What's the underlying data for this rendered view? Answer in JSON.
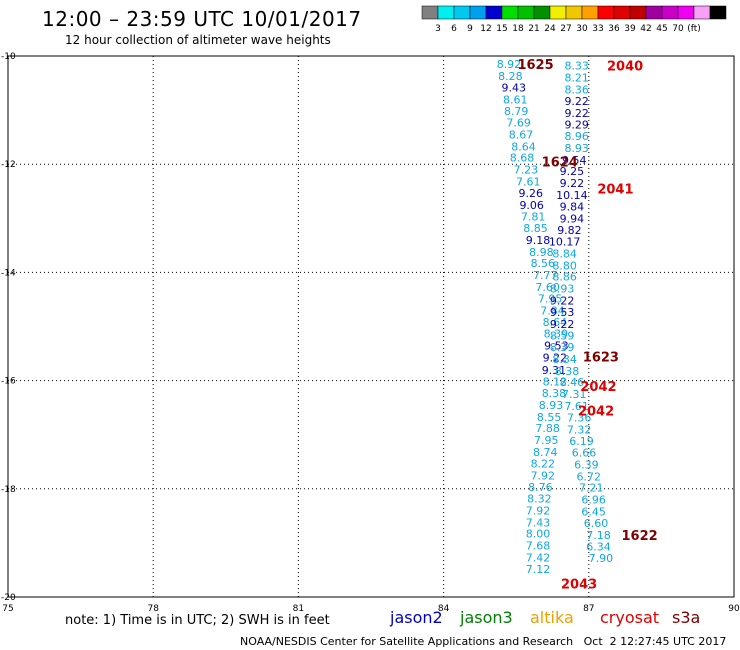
{
  "header": {
    "title": "12:00 – 23:59 UTC 10/01/2017",
    "subtitle": "12 hour collection of altimeter wave heights"
  },
  "colorbar": {
    "colors": [
      "#808080",
      "#00f0f0",
      "#00c8f0",
      "#00a0f0",
      "#0000d0",
      "#00e000",
      "#00c000",
      "#009000",
      "#f0f000",
      "#f0c800",
      "#ffa000",
      "#ff0000",
      "#e00000",
      "#c00000",
      "#a000a0",
      "#c800c8",
      "#f000f0",
      "#f8a0f8",
      "#000000"
    ],
    "labels": [
      "3",
      "6",
      "9",
      "12",
      "15",
      "18",
      "21",
      "24",
      "27",
      "30",
      "33",
      "36",
      "39",
      "42",
      "45",
      "70",
      "(ft)"
    ]
  },
  "map": {
    "x_ticks": [
      "75",
      "78",
      "81",
      "84",
      "87",
      "90"
    ],
    "y_ticks": [
      "-10",
      "-12",
      "-14",
      "-16",
      "-18",
      "-20"
    ],
    "track_labels": [
      {
        "text": "1625",
        "lon": 85.9,
        "lat": -10.15,
        "color": "#800000"
      },
      {
        "text": "2040",
        "lon": 87.75,
        "lat": -10.18,
        "color": "#e00000"
      },
      {
        "text": "1624",
        "lon": 86.4,
        "lat": -11.95,
        "color": "#800000"
      },
      {
        "text": "2041",
        "lon": 87.55,
        "lat": -12.45,
        "color": "#e00000"
      },
      {
        "text": "1623",
        "lon": 87.25,
        "lat": -15.55,
        "color": "#800000"
      },
      {
        "text": "2042",
        "lon": 87.2,
        "lat": -16.1,
        "color": "#e00000"
      },
      {
        "text": "2042",
        "lon": 87.15,
        "lat": -16.55,
        "color": "#e00000"
      },
      {
        "text": "1622",
        "lon": 88.05,
        "lat": -18.85,
        "color": "#800000"
      },
      {
        "text": "2043",
        "lon": 86.8,
        "lat": -19.75,
        "color": "#e00000"
      }
    ],
    "left_track": [
      {
        "v": "8.92",
        "lon": 85.35,
        "lat": -10.15
      },
      {
        "v": "8.28",
        "lon": 85.38,
        "lat": -10.37
      },
      {
        "v": "9.43",
        "lon": 85.45,
        "lat": -10.58
      },
      {
        "v": "8.61",
        "lon": 85.48,
        "lat": -10.8
      },
      {
        "v": "8.79",
        "lon": 85.5,
        "lat": -11.02
      },
      {
        "v": "7.69",
        "lon": 85.55,
        "lat": -11.23
      },
      {
        "v": "8.67",
        "lon": 85.6,
        "lat": -11.45
      },
      {
        "v": "8.64",
        "lon": 85.65,
        "lat": -11.67
      },
      {
        "v": "8.68",
        "lon": 85.62,
        "lat": -11.88
      },
      {
        "v": "7.23",
        "lon": 85.7,
        "lat": -12.1
      },
      {
        "v": "7.61",
        "lon": 85.75,
        "lat": -12.32
      },
      {
        "v": "9.26",
        "lon": 85.8,
        "lat": -12.53
      },
      {
        "v": "9.06",
        "lon": 85.82,
        "lat": -12.75
      },
      {
        "v": "7.81",
        "lon": 85.85,
        "lat": -12.97
      },
      {
        "v": "8.85",
        "lon": 85.9,
        "lat": -13.18
      },
      {
        "v": "9.18",
        "lon": 85.95,
        "lat": -13.4
      },
      {
        "v": "8.98",
        "lon": 86.02,
        "lat": -13.62
      },
      {
        "v": "8.56",
        "lon": 86.05,
        "lat": -13.83
      },
      {
        "v": "7.77",
        "lon": 86.1,
        "lat": -14.05
      },
      {
        "v": "7.60",
        "lon": 86.15,
        "lat": -14.27
      },
      {
        "v": "7.95",
        "lon": 86.2,
        "lat": -14.48
      },
      {
        "v": "7.84",
        "lon": 86.25,
        "lat": -14.7
      },
      {
        "v": "8.64",
        "lon": 86.3,
        "lat": -14.92
      },
      {
        "v": "8.39",
        "lon": 86.32,
        "lat": -15.13
      },
      {
        "v": "9.53",
        "lon": 86.33,
        "lat": -15.35
      },
      {
        "v": "9.22",
        "lon": 86.3,
        "lat": -15.57
      },
      {
        "v": "9.31",
        "lon": 86.28,
        "lat": -15.8
      },
      {
        "v": "8.12",
        "lon": 86.3,
        "lat": -16.02
      },
      {
        "v": "8.38",
        "lon": 86.28,
        "lat": -16.23
      },
      {
        "v": "8.93",
        "lon": 86.22,
        "lat": -16.45
      },
      {
        "v": "8.55",
        "lon": 86.18,
        "lat": -16.67
      },
      {
        "v": "7.88",
        "lon": 86.15,
        "lat": -16.88
      },
      {
        "v": "7.95",
        "lon": 86.12,
        "lat": -17.1
      },
      {
        "v": "8.74",
        "lon": 86.1,
        "lat": -17.32
      },
      {
        "v": "8.22",
        "lon": 86.05,
        "lat": -17.53
      },
      {
        "v": "7.92",
        "lon": 86.05,
        "lat": -17.75
      },
      {
        "v": "8.76",
        "lon": 86.0,
        "lat": -17.97
      },
      {
        "v": "8.32",
        "lon": 85.98,
        "lat": -18.18
      },
      {
        "v": "7.92",
        "lon": 85.95,
        "lat": -18.4
      },
      {
        "v": "7.43",
        "lon": 85.95,
        "lat": -18.62
      },
      {
        "v": "8.00",
        "lon": 85.95,
        "lat": -18.83
      },
      {
        "v": "7.68",
        "lon": 85.95,
        "lat": -19.05
      },
      {
        "v": "7.42",
        "lon": 85.95,
        "lat": -19.27
      },
      {
        "v": "7.12",
        "lon": 85.95,
        "lat": -19.48
      }
    ],
    "right_track": [
      {
        "v": "8.33",
        "lon": 86.75,
        "lat": -10.18
      },
      {
        "v": "8.21",
        "lon": 86.75,
        "lat": -10.4
      },
      {
        "v": "8.36",
        "lon": 86.75,
        "lat": -10.62
      },
      {
        "v": "9.22",
        "lon": 86.75,
        "lat": -10.83
      },
      {
        "v": "9.22",
        "lon": 86.75,
        "lat": -11.05
      },
      {
        "v": "9.29",
        "lon": 86.75,
        "lat": -11.27
      },
      {
        "v": "8.96",
        "lon": 86.75,
        "lat": -11.48
      },
      {
        "v": "8.93",
        "lon": 86.75,
        "lat": -11.7
      },
      {
        "v": "9.54",
        "lon": 86.7,
        "lat": -11.92
      },
      {
        "v": "9.25",
        "lon": 86.65,
        "lat": -12.13
      },
      {
        "v": "9.22",
        "lon": 86.65,
        "lat": -12.35
      },
      {
        "v": "10.14",
        "lon": 86.65,
        "lat": -12.57
      },
      {
        "v": "9.84",
        "lon": 86.65,
        "lat": -12.78
      },
      {
        "v": "9.94",
        "lon": 86.65,
        "lat": -13.0
      },
      {
        "v": "9.82",
        "lon": 86.6,
        "lat": -13.22
      },
      {
        "v": "10.17",
        "lon": 86.5,
        "lat": -13.43
      },
      {
        "v": "8.84",
        "lon": 86.5,
        "lat": -13.65
      },
      {
        "v": "8.80",
        "lon": 86.5,
        "lat": -13.87
      },
      {
        "v": "8.86",
        "lon": 86.5,
        "lat": -14.08
      },
      {
        "v": "8.93",
        "lon": 86.45,
        "lat": -14.3
      },
      {
        "v": "9.22",
        "lon": 86.45,
        "lat": -14.52
      },
      {
        "v": "9.53",
        "lon": 86.45,
        "lat": -14.73
      },
      {
        "v": "9.22",
        "lon": 86.45,
        "lat": -14.95
      },
      {
        "v": "8.59",
        "lon": 86.45,
        "lat": -15.17
      },
      {
        "v": "8.39",
        "lon": 86.45,
        "lat": -15.38
      },
      {
        "v": "8.34",
        "lon": 86.5,
        "lat": -15.6
      },
      {
        "v": "8.38",
        "lon": 86.55,
        "lat": -15.82
      },
      {
        "v": "8.46",
        "lon": 86.65,
        "lat": -16.03
      },
      {
        "v": "7.31",
        "lon": 86.7,
        "lat": -16.25
      },
      {
        "v": "7.61",
        "lon": 86.75,
        "lat": -16.47
      },
      {
        "v": "7.36",
        "lon": 86.8,
        "lat": -16.68
      },
      {
        "v": "7.32",
        "lon": 86.8,
        "lat": -16.9
      },
      {
        "v": "6.19",
        "lon": 86.85,
        "lat": -17.12
      },
      {
        "v": "6.66",
        "lon": 86.9,
        "lat": -17.33
      },
      {
        "v": "6.39",
        "lon": 86.95,
        "lat": -17.55
      },
      {
        "v": "6.72",
        "lon": 87.0,
        "lat": -17.77
      },
      {
        "v": "7.21",
        "lon": 87.05,
        "lat": -17.98
      },
      {
        "v": "6.96",
        "lon": 87.1,
        "lat": -18.2
      },
      {
        "v": "6.45",
        "lon": 87.1,
        "lat": -18.42
      },
      {
        "v": "6.60",
        "lon": 87.15,
        "lat": -18.63
      },
      {
        "v": "7.18",
        "lon": 87.2,
        "lat": -18.85
      },
      {
        "v": "6.34",
        "lon": 87.2,
        "lat": -19.07
      },
      {
        "v": "7.90",
        "lon": 87.25,
        "lat": -19.28
      }
    ]
  },
  "note": "note: 1) Time is in UTC; 2) SWH is in feet",
  "satellites": [
    {
      "name": "jason2",
      "color": "#0000c0"
    },
    {
      "name": "jason3",
      "color": "#008000"
    },
    {
      "name": "altika",
      "color": "#f0a000"
    },
    {
      "name": "cryosat",
      "color": "#e00000"
    },
    {
      "name": "s3a",
      "color": "#800000"
    }
  ],
  "footer": "NOAA/NESDIS Center for Satellite Applications and Research   Oct  2 12:27:45 UTC 2017"
}
